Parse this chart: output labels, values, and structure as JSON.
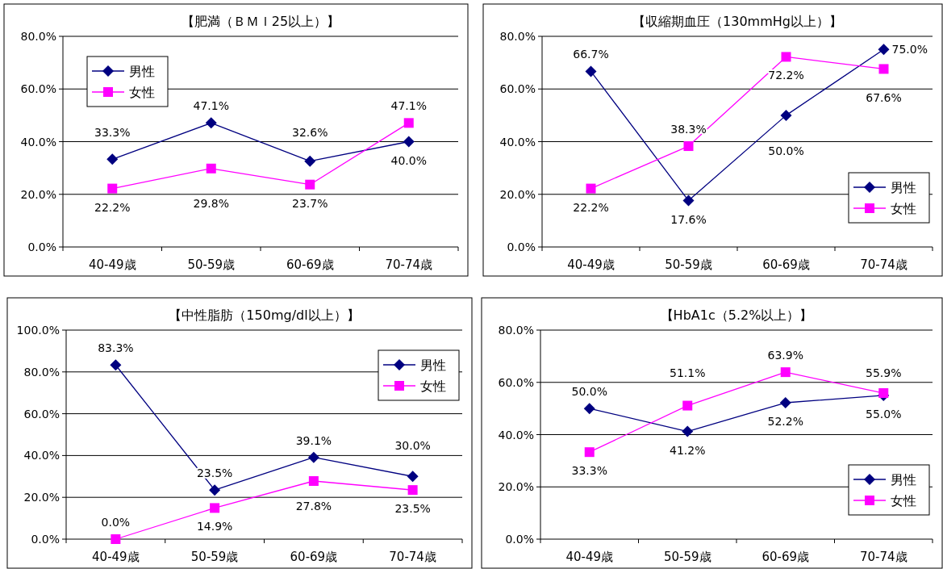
{
  "chart_data": [
    {
      "type": "line",
      "title": "【肥満（ＢＭＩ25以上）】",
      "categories": [
        "40-49歳",
        "50-59歳",
        "60-69歳",
        "70-74歳"
      ],
      "ylim": [
        0,
        80
      ],
      "yticks": [
        {
          "value": 0,
          "label": "0.0%"
        },
        {
          "value": 20,
          "label": "20.0%"
        },
        {
          "value": 40,
          "label": "40.0%"
        },
        {
          "value": 60,
          "label": "60.0%"
        },
        {
          "value": 80,
          "label": "80.0%"
        }
      ],
      "grid": "y",
      "legend": "top left",
      "series": [
        {
          "name": "男性",
          "color": "#000080",
          "marker": "diamond",
          "values": [
            33.3,
            47.1,
            32.6,
            40.0
          ],
          "value_labels": [
            "33.3%",
            "47.1%",
            "32.6%",
            "40.0%"
          ]
        },
        {
          "name": "女性",
          "color": "#ff00ff",
          "marker": "square",
          "values": [
            22.2,
            29.8,
            23.7,
            47.1
          ],
          "value_labels": [
            "22.2%",
            "29.8%",
            "23.7%",
            "47.1%"
          ]
        }
      ]
    },
    {
      "type": "line",
      "title": "【収縮期血圧（130mmHg以上）】",
      "categories": [
        "40-49歳",
        "50-59歳",
        "60-69歳",
        "70-74歳"
      ],
      "ylim": [
        0,
        80
      ],
      "yticks": [
        {
          "value": 0,
          "label": "0.0%"
        },
        {
          "value": 20,
          "label": "20.0%"
        },
        {
          "value": 40,
          "label": "40.0%"
        },
        {
          "value": 60,
          "label": "60.0%"
        },
        {
          "value": 80,
          "label": "80.0%"
        }
      ],
      "grid": "y",
      "legend": "bottom right",
      "series": [
        {
          "name": "男性",
          "color": "#000080",
          "marker": "diamond",
          "values": [
            66.7,
            17.6,
            50.0,
            75.0
          ],
          "value_labels": [
            "66.7%",
            "17.6%",
            "50.0%",
            "75.0%"
          ]
        },
        {
          "name": "女性",
          "color": "#ff00ff",
          "marker": "square",
          "values": [
            22.2,
            38.3,
            72.2,
            67.6
          ],
          "value_labels": [
            "22.2%",
            "38.3%",
            "72.2%",
            "67.6%"
          ]
        }
      ]
    },
    {
      "type": "line",
      "title": "【中性脂肪（150mg/dl以上）】",
      "categories": [
        "40-49歳",
        "50-59歳",
        "60-69歳",
        "70-74歳"
      ],
      "ylim": [
        0,
        100
      ],
      "yticks": [
        {
          "value": 0,
          "label": "0.0%"
        },
        {
          "value": 20,
          "label": "20.0%"
        },
        {
          "value": 40,
          "label": "40.0%"
        },
        {
          "value": 60,
          "label": "60.0%"
        },
        {
          "value": 80,
          "label": "80.0%"
        },
        {
          "value": 100,
          "label": "100.0%"
        }
      ],
      "grid": "y",
      "legend": "top right",
      "series": [
        {
          "name": "男性",
          "color": "#000080",
          "marker": "diamond",
          "values": [
            83.3,
            23.5,
            39.1,
            30.0
          ],
          "value_labels": [
            "83.3%",
            "23.5%",
            "39.1%",
            "30.0%"
          ]
        },
        {
          "name": "女性",
          "color": "#ff00ff",
          "marker": "square",
          "values": [
            0.0,
            14.9,
            27.8,
            23.5
          ],
          "value_labels": [
            "0.0%",
            "14.9%",
            "27.8%",
            "23.5%"
          ]
        }
      ]
    },
    {
      "type": "line",
      "title": "【HbA1c（5.2%以上）】",
      "categories": [
        "40-49歳",
        "50-59歳",
        "60-69歳",
        "70-74歳"
      ],
      "ylim": [
        0,
        80
      ],
      "yticks": [
        {
          "value": 0,
          "label": "0.0%"
        },
        {
          "value": 20,
          "label": "20.0%"
        },
        {
          "value": 40,
          "label": "40.0%"
        },
        {
          "value": 60,
          "label": "60.0%"
        },
        {
          "value": 80,
          "label": "80.0%"
        }
      ],
      "grid": "y",
      "legend": "bottom right",
      "series": [
        {
          "name": "男性",
          "color": "#000080",
          "marker": "diamond",
          "values": [
            50.0,
            41.2,
            52.2,
            55.0
          ],
          "value_labels": [
            "50.0%",
            "41.2%",
            "52.2%",
            "55.0%"
          ]
        },
        {
          "name": "女性",
          "color": "#ff00ff",
          "marker": "square",
          "values": [
            33.3,
            51.1,
            63.9,
            55.9
          ],
          "value_labels": [
            "33.3%",
            "51.1%",
            "63.9%",
            "55.9%"
          ]
        }
      ]
    }
  ]
}
